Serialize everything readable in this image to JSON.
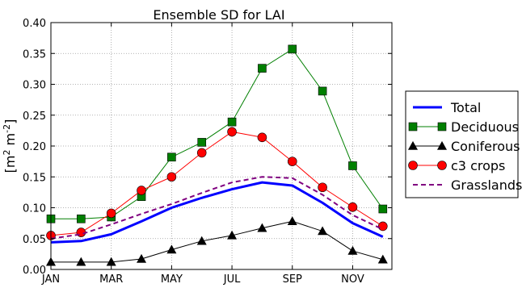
{
  "chart_data": {
    "type": "line",
    "title": "Ensemble SD for LAI",
    "ylabel_parts": {
      "open": "[m",
      "exp1": "2",
      "mid": " m",
      "exp2": "-2",
      "close": "]"
    },
    "xlabel": "",
    "x": [
      1,
      2,
      3,
      4,
      5,
      6,
      7,
      8,
      9,
      10,
      11,
      12
    ],
    "xticks": [
      1,
      3,
      5,
      7,
      9,
      11
    ],
    "xticklabels": [
      "JAN",
      "MAR",
      "MAY",
      "JUL",
      "SEP",
      "NOV"
    ],
    "xlim": [
      1,
      12.3
    ],
    "ylim": [
      0,
      0.4
    ],
    "yticks": [
      0.0,
      0.05,
      0.1,
      0.15,
      0.2,
      0.25,
      0.3,
      0.35,
      0.4
    ],
    "yticklabels": [
      "0.00",
      "0.05",
      "0.10",
      "0.15",
      "0.20",
      "0.25",
      "0.30",
      "0.35",
      "0.40"
    ],
    "grid": true,
    "legend_position": "right-outside",
    "series": [
      {
        "name": "Total",
        "color": "#0000ff",
        "style": "solid",
        "width": 3,
        "marker": "none",
        "values": [
          0.044,
          0.046,
          0.057,
          0.078,
          0.1,
          0.116,
          0.13,
          0.141,
          0.136,
          0.108,
          0.075,
          0.053
        ]
      },
      {
        "name": "Deciduous",
        "color": "#007f00",
        "style": "solid",
        "width": 1,
        "marker": "square",
        "values": [
          0.082,
          0.082,
          0.085,
          0.118,
          0.182,
          0.206,
          0.239,
          0.326,
          0.357,
          0.289,
          0.168,
          0.098
        ]
      },
      {
        "name": "Coniferous",
        "color": "#000000",
        "style": "solid",
        "width": 1,
        "marker": "triangle",
        "values": [
          0.012,
          0.012,
          0.012,
          0.017,
          0.032,
          0.046,
          0.055,
          0.067,
          0.078,
          0.062,
          0.03,
          0.016
        ]
      },
      {
        "name": "c3 crops",
        "color": "#ff0000",
        "style": "solid",
        "width": 1,
        "marker": "circle",
        "values": [
          0.055,
          0.06,
          0.091,
          0.128,
          0.15,
          0.189,
          0.223,
          0.214,
          0.175,
          0.133,
          0.101,
          0.07
        ]
      },
      {
        "name": "Grasslands",
        "color": "#800080",
        "style": "dashed",
        "width": 2,
        "marker": "none",
        "values": [
          0.05,
          0.057,
          0.073,
          0.09,
          0.106,
          0.124,
          0.141,
          0.15,
          0.148,
          0.121,
          0.088,
          0.065
        ]
      }
    ]
  }
}
